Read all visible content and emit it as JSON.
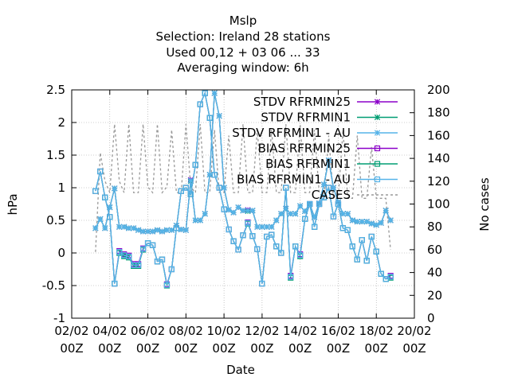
{
  "title_lines": [
    "Mslp",
    "Selection: Ireland      28 stations",
    "Used  00,12  + 03 06 ... 33",
    "Averaging window:  6h"
  ],
  "chart_data": {
    "type": "line",
    "xlabel": "Date",
    "ylabel": "hPa",
    "y2label": "No cases",
    "xlim": [
      0,
      18
    ],
    "ylim": [
      -1,
      2.5
    ],
    "y2lim": [
      0,
      200
    ],
    "x_ticks": [
      {
        "x": 0,
        "label": [
          "02/02",
          "00Z"
        ]
      },
      {
        "x": 2,
        "label": [
          "04/02",
          "00Z"
        ]
      },
      {
        "x": 4,
        "label": [
          "06/02",
          "00Z"
        ]
      },
      {
        "x": 6,
        "label": [
          "08/02",
          "00Z"
        ]
      },
      {
        "x": 8,
        "label": [
          "10/02",
          "00Z"
        ]
      },
      {
        "x": 10,
        "label": [
          "12/02",
          "00Z"
        ]
      },
      {
        "x": 12,
        "label": [
          "14/02",
          "00Z"
        ]
      },
      {
        "x": 14,
        "label": [
          "16/02",
          "00Z"
        ]
      },
      {
        "x": 16,
        "label": [
          "18/02",
          "00Z"
        ]
      },
      {
        "x": 18,
        "label": [
          "20/02",
          "00Z"
        ]
      }
    ],
    "y_ticks": [
      -1,
      -0.5,
      0,
      0.5,
      1,
      1.5,
      2,
      2.5
    ],
    "y2_ticks": [
      0,
      20,
      40,
      60,
      80,
      100,
      120,
      140,
      160,
      180,
      200
    ],
    "legend_position": "top-right",
    "legend": [
      {
        "label": "STDV RFRMIN25",
        "color": "#8b00c9",
        "marker": "star"
      },
      {
        "label": "STDV RFRMIN1",
        "color": "#009e73",
        "marker": "star"
      },
      {
        "label": "STDV RFRMIN1 - AU",
        "color": "#56b4e9",
        "marker": "star"
      },
      {
        "label": "BIAS RFRMIN25",
        "color": "#8b00c9",
        "marker": "square"
      },
      {
        "label": "BIAS RFRMIN1",
        "color": "#009e73",
        "marker": "square"
      },
      {
        "label": "BIAS RFRMIN1 - AU",
        "color": "#56b4e9",
        "marker": "square"
      },
      {
        "label": "CASES",
        "color": "#999999",
        "marker": "none"
      }
    ],
    "stdv_x": [
      1.25,
      1.5,
      1.75,
      2.0,
      2.25,
      2.5,
      2.75,
      3.0,
      3.25,
      3.5,
      3.75,
      4.0,
      4.25,
      4.5,
      4.75,
      5.0,
      5.25,
      5.5,
      5.75,
      6.0,
      6.25,
      6.5,
      6.75,
      7.0,
      7.25,
      7.5,
      7.75,
      8.0,
      8.25,
      8.5,
      8.75,
      9.0,
      9.25,
      9.5,
      9.75,
      10.0,
      10.25,
      10.5,
      10.75,
      11.0,
      11.25,
      11.5,
      11.75,
      12.0,
      12.25,
      12.5,
      12.75,
      13.0,
      13.25,
      13.5,
      13.75,
      14.0,
      14.25,
      14.5,
      14.75,
      15.0,
      15.25,
      15.5,
      15.75,
      16.0,
      16.25,
      16.5,
      16.75
    ],
    "stdv": [
      0.38,
      0.52,
      0.38,
      0.7,
      0.99,
      0.4,
      0.4,
      0.38,
      0.38,
      0.35,
      0.33,
      0.33,
      0.33,
      0.35,
      0.33,
      0.35,
      0.35,
      0.42,
      0.36,
      0.35,
      1.1,
      0.5,
      0.5,
      0.6,
      1.2,
      2.45,
      2.1,
      1.0,
      0.66,
      0.62,
      0.7,
      0.65,
      0.64,
      0.65,
      0.4,
      0.4,
      0.4,
      0.4,
      0.5,
      0.6,
      0.68,
      0.6,
      0.6,
      0.72,
      0.64,
      0.75,
      0.55,
      0.76,
      1.05,
      1.42,
      1.0,
      0.78,
      0.6,
      0.6,
      0.5,
      0.48,
      0.48,
      0.48,
      0.45,
      0.43,
      0.46,
      0.65,
      0.5
    ],
    "stdv_var": [
      0.0,
      0.0,
      0.0,
      0.0,
      0.0,
      0.0,
      0.0,
      0.0,
      0.0,
      0.0,
      0.0,
      0.0,
      0.0,
      0.0,
      0.0,
      0.0,
      0.0,
      0.0,
      0.0,
      0.0,
      0.02,
      0.0,
      0.0,
      0.0,
      0.0,
      0.0,
      0.0,
      0.0,
      0.0,
      0.0,
      0.0,
      0.0,
      0.02,
      0.0,
      0.0,
      0.0,
      0.0,
      0.0,
      0.0,
      0.0,
      0.0,
      0.0,
      0.0,
      0.0,
      0.0,
      0.0,
      0.0,
      0.0,
      0.0,
      0.0,
      0.0,
      0.0,
      0.0,
      0.0,
      0.0,
      0.0,
      0.0,
      0.0,
      0.0,
      0.0,
      0.0,
      0.0,
      0.0
    ],
    "bias_x": [
      1.25,
      1.5,
      1.75,
      2.0,
      2.25,
      2.5,
      2.75,
      3.0,
      3.25,
      3.5,
      3.75,
      4.0,
      4.25,
      4.5,
      4.75,
      5.0,
      5.25,
      5.5,
      5.75,
      6.0,
      6.25,
      6.5,
      6.75,
      7.0,
      7.25,
      7.5,
      7.75,
      8.0,
      8.25,
      8.5,
      8.75,
      9.0,
      9.25,
      9.5,
      9.75,
      10.0,
      10.25,
      10.5,
      10.75,
      11.0,
      11.25,
      11.5,
      11.75,
      12.0,
      12.25,
      12.5,
      12.75,
      13.0,
      13.25,
      13.5,
      13.75,
      14.0,
      14.25,
      14.5,
      14.75,
      15.0,
      15.25,
      15.5,
      15.75,
      16.0,
      16.25,
      16.5,
      16.75
    ],
    "bias": [
      0.95,
      1.25,
      0.85,
      0.55,
      -0.47,
      0.0,
      -0.05,
      -0.07,
      -0.2,
      -0.2,
      0.05,
      0.15,
      0.12,
      -0.13,
      -0.1,
      -0.5,
      -0.25,
      0.38,
      0.95,
      1.0,
      0.9,
      1.35,
      2.28,
      2.45,
      2.07,
      1.2,
      1.0,
      0.67,
      0.36,
      0.18,
      0.05,
      0.27,
      0.45,
      0.26,
      0.06,
      -0.47,
      0.25,
      0.28,
      0.1,
      0.0,
      1.0,
      -0.38,
      0.1,
      -0.05,
      0.52,
      0.75,
      0.4,
      0.75,
      0.85,
      1.0,
      0.56,
      0.75,
      0.38,
      0.35,
      0.1,
      -0.1,
      0.2,
      -0.12,
      0.25,
      0.02,
      -0.32,
      -0.4,
      -0.38
    ],
    "bias_var": [
      0.0,
      0.0,
      0.0,
      0.0,
      0.0,
      0.03,
      0.03,
      0.03,
      0.03,
      0.03,
      0.02,
      0.0,
      0.0,
      0.0,
      0.0,
      0.02,
      0.0,
      0.0,
      0.0,
      0.0,
      0.0,
      0.0,
      0.0,
      0.0,
      0.0,
      0.0,
      0.0,
      0.0,
      0.0,
      0.0,
      0.0,
      0.0,
      0.02,
      0.0,
      0.0,
      0.0,
      0.0,
      0.0,
      0.0,
      0.0,
      0.0,
      0.03,
      0.0,
      0.03,
      0.0,
      0.0,
      0.0,
      0.0,
      0.0,
      0.0,
      0.0,
      0.0,
      0.0,
      0.0,
      0.0,
      0.0,
      0.0,
      0.0,
      0.0,
      0.0,
      0.0,
      0.0,
      0.03
    ],
    "cases_x": [
      1.25,
      1.5,
      1.75,
      2.0,
      2.25,
      2.5,
      2.75,
      3.0,
      3.25,
      3.5,
      3.75,
      4.0,
      4.25,
      4.5,
      4.75,
      5.0,
      5.25,
      5.5,
      5.75,
      6.0,
      6.25,
      6.5,
      6.75,
      7.0,
      7.25,
      7.5,
      7.75,
      8.0,
      8.25,
      8.5,
      8.75,
      9.0,
      9.25,
      9.5,
      9.75,
      10.0,
      10.25,
      10.5,
      10.75,
      11.0,
      11.25,
      11.5,
      11.75,
      12.0,
      12.25,
      12.5,
      12.75,
      13.0,
      13.25,
      13.5,
      13.75,
      14.0,
      14.25,
      14.5,
      14.75,
      15.0,
      15.25,
      15.5,
      15.75,
      16.0,
      16.25,
      16.5,
      16.75
    ],
    "cases": [
      58,
      145,
      120,
      110,
      170,
      120,
      110,
      170,
      110,
      110,
      170,
      115,
      110,
      170,
      110,
      115,
      165,
      110,
      110,
      170,
      115,
      110,
      170,
      110,
      110,
      165,
      110,
      110,
      160,
      110,
      110,
      170,
      110,
      110,
      165,
      110,
      110,
      165,
      110,
      110,
      170,
      110,
      110,
      170,
      110,
      110,
      165,
      110,
      105,
      160,
      105,
      105,
      165,
      105,
      105,
      160,
      105,
      105,
      150,
      105,
      105,
      105,
      60
    ]
  }
}
